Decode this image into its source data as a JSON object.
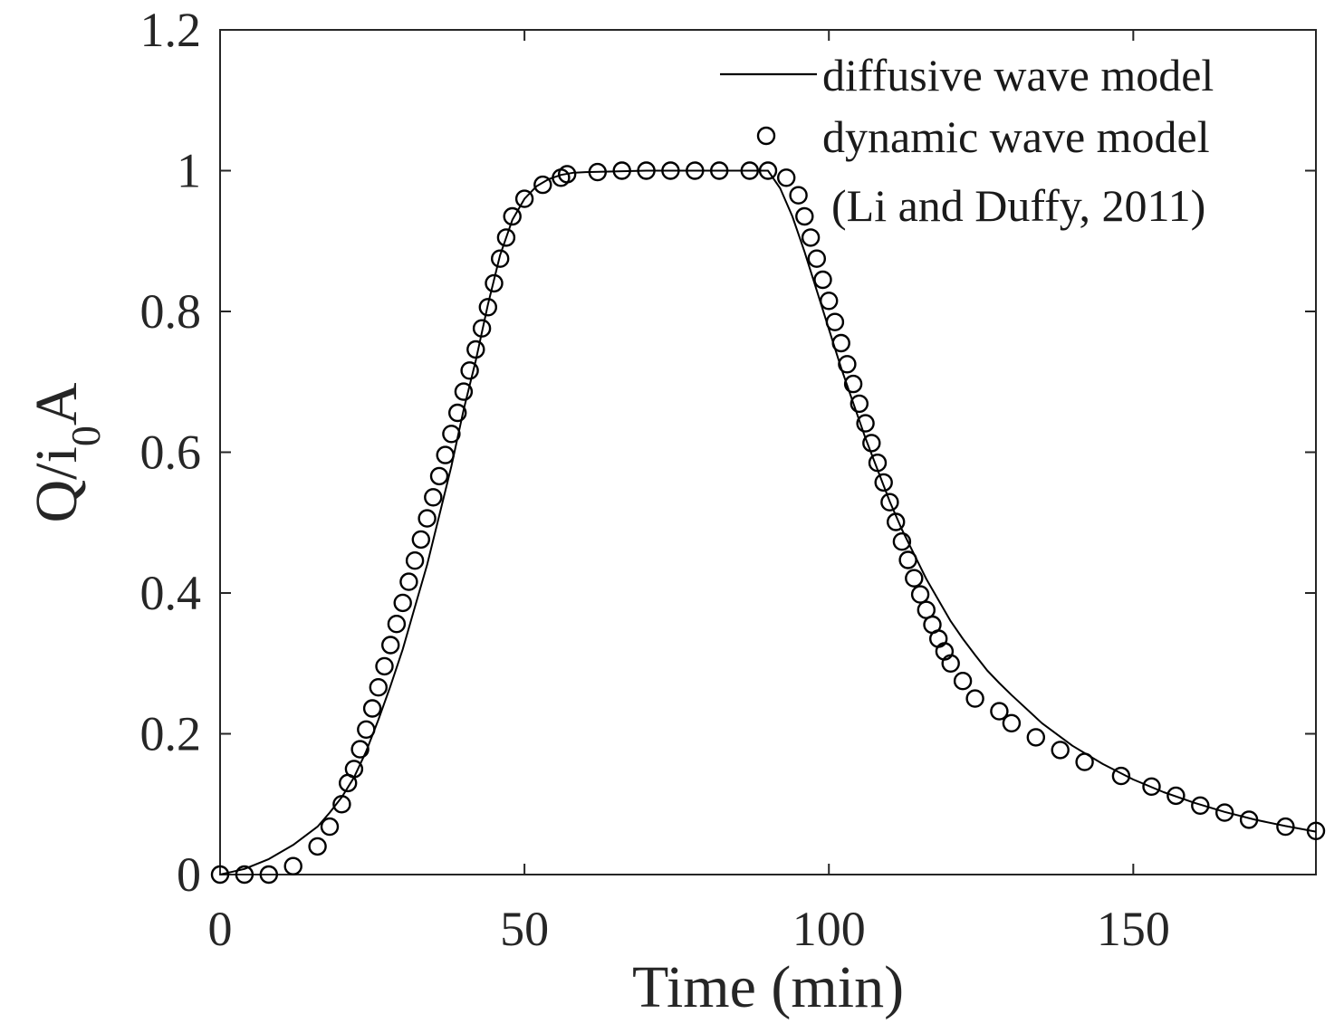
{
  "chart_data": {
    "type": "line",
    "title": "",
    "xlabel": "Time (min)",
    "ylabel_base": "Q/i",
    "ylabel_sub": "0",
    "ylabel_tail": "A",
    "xlim": [
      0,
      180
    ],
    "ylim": [
      0,
      1.2
    ],
    "xticks": [
      0,
      50,
      100,
      150
    ],
    "xtick_labels": [
      "0",
      "50",
      "100",
      "150"
    ],
    "yticks": [
      0,
      0.2,
      0.4,
      0.6,
      0.8,
      1,
      1.2
    ],
    "ytick_labels": [
      "0",
      "0.2",
      "0.4",
      "0.6",
      "0.8",
      "1",
      "1.2"
    ],
    "grid": false,
    "legend_position": "top-right",
    "series": [
      {
        "name": "diffusive wave model",
        "style": "line",
        "color": "#000000",
        "x": [
          0,
          4,
          8,
          12,
          16,
          18,
          20,
          22,
          24,
          26,
          28,
          30,
          32,
          34,
          36,
          38,
          40,
          42,
          44,
          46,
          48,
          50,
          52,
          54,
          56,
          58,
          60,
          70,
          80,
          90,
          92,
          94,
          96,
          98,
          100,
          102,
          104,
          106,
          108,
          110,
          112,
          114,
          116,
          118,
          120,
          122,
          124,
          126,
          128,
          130,
          135,
          140,
          145,
          150,
          155,
          160,
          165,
          170,
          175,
          180
        ],
        "y": [
          0,
          0.008,
          0.022,
          0.042,
          0.068,
          0.088,
          0.11,
          0.138,
          0.175,
          0.22,
          0.268,
          0.32,
          0.38,
          0.44,
          0.51,
          0.58,
          0.66,
          0.73,
          0.81,
          0.88,
          0.93,
          0.96,
          0.978,
          0.988,
          0.994,
          0.997,
          0.998,
          1.0,
          1.0,
          1.0,
          0.975,
          0.935,
          0.885,
          0.83,
          0.775,
          0.72,
          0.67,
          0.62,
          0.575,
          0.53,
          0.49,
          0.455,
          0.42,
          0.39,
          0.36,
          0.335,
          0.312,
          0.29,
          0.272,
          0.255,
          0.215,
          0.183,
          0.157,
          0.135,
          0.117,
          0.102,
          0.089,
          0.078,
          0.069,
          0.061
        ]
      },
      {
        "name_line1": "dynamic wave model",
        "name_line2": "(Li and Duffy, 2011)",
        "style": "marker-circle",
        "color": "#000000",
        "x": [
          0,
          4,
          8,
          12,
          16,
          18,
          20,
          21,
          22,
          23,
          24,
          25,
          26,
          27,
          28,
          29,
          30,
          31,
          32,
          33,
          34,
          35,
          36,
          37,
          38,
          39,
          40,
          41,
          42,
          43,
          44,
          45,
          46,
          47,
          48,
          50,
          53,
          56,
          57,
          62,
          66,
          70,
          74,
          78,
          82,
          87,
          90,
          93,
          95,
          96,
          97,
          98,
          99,
          100,
          101,
          102,
          103,
          104,
          105,
          106,
          107,
          108,
          109,
          110,
          111,
          112,
          113,
          114,
          115,
          116,
          117,
          118,
          119,
          120,
          122,
          124,
          128,
          130,
          134,
          138,
          142,
          148,
          153,
          157,
          161,
          165,
          169,
          175,
          180
        ],
        "y": [
          0.0,
          0.0,
          0.0,
          0.012,
          0.04,
          0.068,
          0.1,
          0.13,
          0.15,
          0.178,
          0.206,
          0.236,
          0.266,
          0.296,
          0.326,
          0.356,
          0.386,
          0.416,
          0.446,
          0.476,
          0.506,
          0.536,
          0.566,
          0.596,
          0.626,
          0.656,
          0.686,
          0.716,
          0.746,
          0.776,
          0.806,
          0.84,
          0.875,
          0.905,
          0.935,
          0.96,
          0.98,
          0.99,
          0.995,
          0.998,
          1.0,
          1.0,
          1.0,
          1.0,
          1.0,
          1.0,
          1.0,
          0.99,
          0.965,
          0.935,
          0.905,
          0.875,
          0.845,
          0.815,
          0.785,
          0.755,
          0.725,
          0.697,
          0.669,
          0.641,
          0.613,
          0.585,
          0.557,
          0.529,
          0.501,
          0.473,
          0.447,
          0.421,
          0.398,
          0.376,
          0.355,
          0.335,
          0.317,
          0.3,
          0.275,
          0.25,
          0.232,
          0.215,
          0.195,
          0.177,
          0.16,
          0.14,
          0.125,
          0.112,
          0.098,
          0.088,
          0.078,
          0.068,
          0.062
        ]
      }
    ]
  }
}
